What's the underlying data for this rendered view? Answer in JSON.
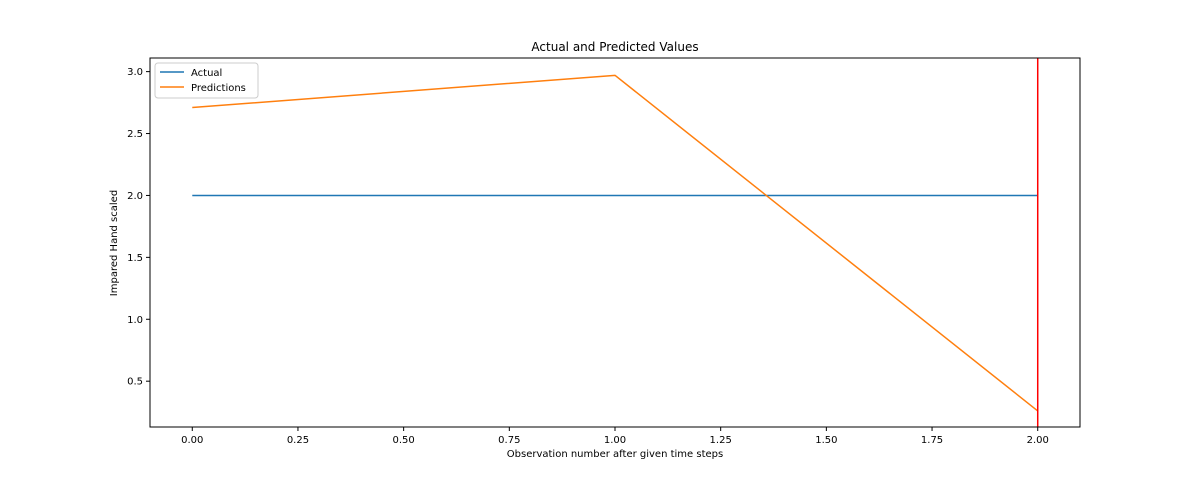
{
  "chart_data": {
    "type": "line",
    "title": "Actual and Predicted Values",
    "xlabel": "Observation number after given time steps",
    "ylabel": "Impared Hand scaled",
    "xlim": [
      -0.1,
      2.1
    ],
    "ylim": [
      0.13,
      3.11
    ],
    "xticks": [
      0.0,
      0.25,
      0.5,
      0.75,
      1.0,
      1.25,
      1.5,
      1.75,
      2.0
    ],
    "xtick_labels": [
      "0.00",
      "0.25",
      "0.50",
      "0.75",
      "1.00",
      "1.25",
      "1.50",
      "1.75",
      "2.00"
    ],
    "yticks": [
      0.5,
      1.0,
      1.5,
      2.0,
      2.5,
      3.0
    ],
    "ytick_labels": [
      "0.5",
      "1.0",
      "1.5",
      "2.0",
      "2.5",
      "3.0"
    ],
    "series": [
      {
        "name": "Actual",
        "color": "#1f77b4",
        "x": [
          0,
          1,
          2
        ],
        "values": [
          2.0,
          2.0,
          2.0
        ]
      },
      {
        "name": "Predictions",
        "color": "#ff7f0e",
        "x": [
          0,
          1,
          2
        ],
        "values": [
          2.71,
          2.97,
          0.26
        ]
      }
    ],
    "vline": {
      "x": 2.0,
      "color": "#ff0000"
    },
    "legend": "upper-left",
    "grid": false
  }
}
